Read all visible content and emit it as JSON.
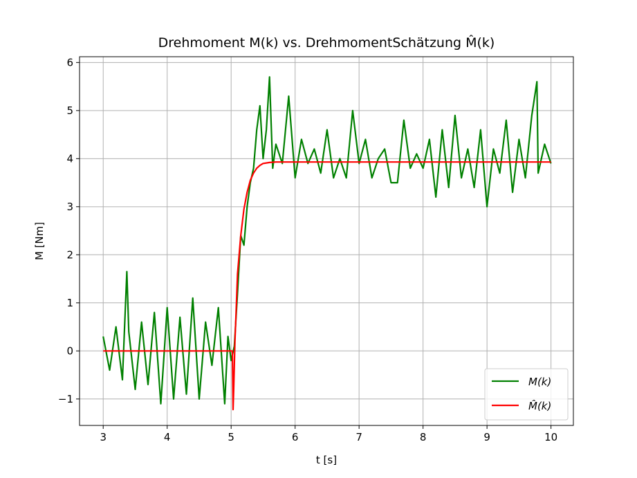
{
  "chart_data": {
    "type": "line",
    "title": "Drehmoment M(k) vs. DrehmomentSchätzung M̂(k)",
    "xlabel": "t [s]",
    "ylabel": "M [Nm]",
    "xlim": [
      2.63,
      10.35
    ],
    "ylim": [
      -1.55,
      6.12
    ],
    "xticks": [
      "3",
      "4",
      "5",
      "6",
      "7",
      "8",
      "9",
      "10"
    ],
    "yticks": [
      "−1",
      "0",
      "1",
      "2",
      "3",
      "4",
      "5",
      "6"
    ],
    "grid": true,
    "legend_position": "lower-right",
    "series": [
      {
        "name": "M(k)",
        "color": "#008000",
        "x": [
          3.0,
          3.1,
          3.2,
          3.3,
          3.37,
          3.4,
          3.5,
          3.6,
          3.7,
          3.8,
          3.9,
          4.0,
          4.1,
          4.2,
          4.3,
          4.4,
          4.5,
          4.6,
          4.7,
          4.8,
          4.9,
          4.95,
          5.0,
          5.05,
          5.1,
          5.15,
          5.2,
          5.25,
          5.3,
          5.35,
          5.4,
          5.45,
          5.5,
          5.55,
          5.6,
          5.65,
          5.7,
          5.8,
          5.9,
          6.0,
          6.1,
          6.2,
          6.3,
          6.4,
          6.5,
          6.6,
          6.7,
          6.8,
          6.9,
          7.0,
          7.1,
          7.2,
          7.3,
          7.4,
          7.5,
          7.6,
          7.7,
          7.8,
          7.9,
          8.0,
          8.1,
          8.2,
          8.3,
          8.4,
          8.5,
          8.6,
          8.7,
          8.8,
          8.9,
          9.0,
          9.1,
          9.2,
          9.3,
          9.4,
          9.5,
          9.6,
          9.7,
          9.78,
          9.8,
          9.9,
          10.0
        ],
        "y": [
          0.3,
          -0.4,
          0.5,
          -0.6,
          1.65,
          0.4,
          -0.8,
          0.6,
          -0.7,
          0.8,
          -1.1,
          0.9,
          -1.0,
          0.7,
          -0.9,
          1.1,
          -1.0,
          0.6,
          -0.3,
          0.9,
          -1.1,
          0.3,
          -0.2,
          0.1,
          1.2,
          2.4,
          2.2,
          3.0,
          3.5,
          3.8,
          4.6,
          5.1,
          4.0,
          4.6,
          5.7,
          3.8,
          4.3,
          3.9,
          5.3,
          3.6,
          4.4,
          3.9,
          4.2,
          3.7,
          4.6,
          3.6,
          4.0,
          3.6,
          5.0,
          3.9,
          4.4,
          3.6,
          4.0,
          4.2,
          3.5,
          3.5,
          4.8,
          3.8,
          4.1,
          3.8,
          4.4,
          3.2,
          4.6,
          3.4,
          4.9,
          3.6,
          4.2,
          3.4,
          4.6,
          3.0,
          4.2,
          3.7,
          4.8,
          3.3,
          4.4,
          3.6,
          4.9,
          5.6,
          3.7,
          4.3,
          3.9
        ]
      },
      {
        "name": "M̂(k)",
        "color": "#ff0000",
        "x": [
          3.0,
          4.0,
          5.0,
          5.02,
          5.03,
          5.04,
          5.06,
          5.08,
          5.1,
          5.15,
          5.2,
          5.25,
          5.3,
          5.35,
          5.4,
          5.45,
          5.5,
          5.6,
          5.7,
          5.8,
          6.0,
          7.0,
          8.0,
          9.0,
          10.0
        ],
        "y": [
          0.0,
          0.0,
          0.0,
          0.0,
          -1.22,
          -0.8,
          0.2,
          0.9,
          1.6,
          2.4,
          2.95,
          3.3,
          3.55,
          3.7,
          3.8,
          3.86,
          3.9,
          3.92,
          3.93,
          3.93,
          3.93,
          3.93,
          3.93,
          3.93,
          3.93
        ]
      }
    ]
  }
}
